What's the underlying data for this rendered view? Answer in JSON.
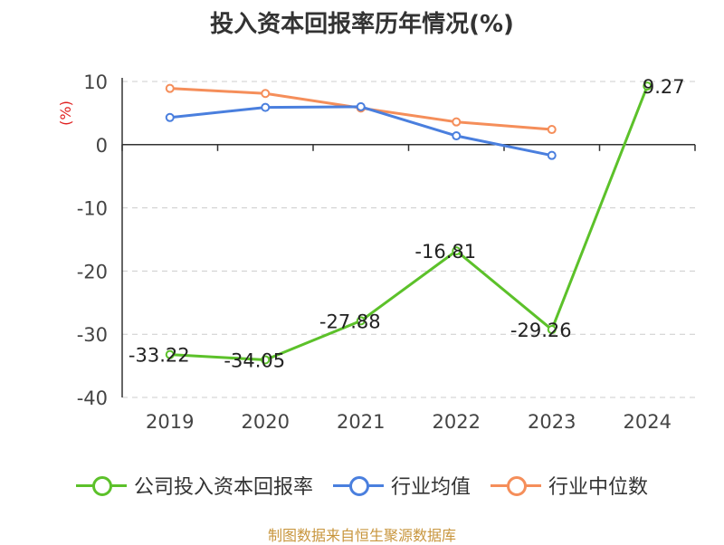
{
  "chart_data": {
    "type": "line",
    "title": "投入资本回报率历年情况(%)",
    "ylabel": "(%)",
    "categories": [
      "2019",
      "2020",
      "2021",
      "2022",
      "2023",
      "2024"
    ],
    "ylim": [
      -40,
      10
    ],
    "yticks": [
      "10",
      "0",
      "-10",
      "-20",
      "-30",
      "-40"
    ],
    "grid": true,
    "legend_position": "bottom",
    "series": [
      {
        "name": "公司投入资本回报率",
        "color": "#5cc12a",
        "values": [
          -33.22,
          -34.05,
          -27.88,
          -16.81,
          -29.26,
          9.27
        ],
        "labels": [
          "-33.22",
          "-34.05",
          "-27.88",
          "-16.81",
          "-29.26",
          "9.27"
        ]
      },
      {
        "name": "行业均值",
        "color": "#4a7fde",
        "values": [
          4.3,
          5.9,
          6.0,
          1.4,
          -1.7,
          null
        ]
      },
      {
        "name": "行业中位数",
        "color": "#f58e5a",
        "values": [
          8.9,
          8.1,
          5.8,
          3.6,
          2.4,
          null
        ]
      }
    ],
    "source": "制图数据来自恒生聚源数据库"
  }
}
